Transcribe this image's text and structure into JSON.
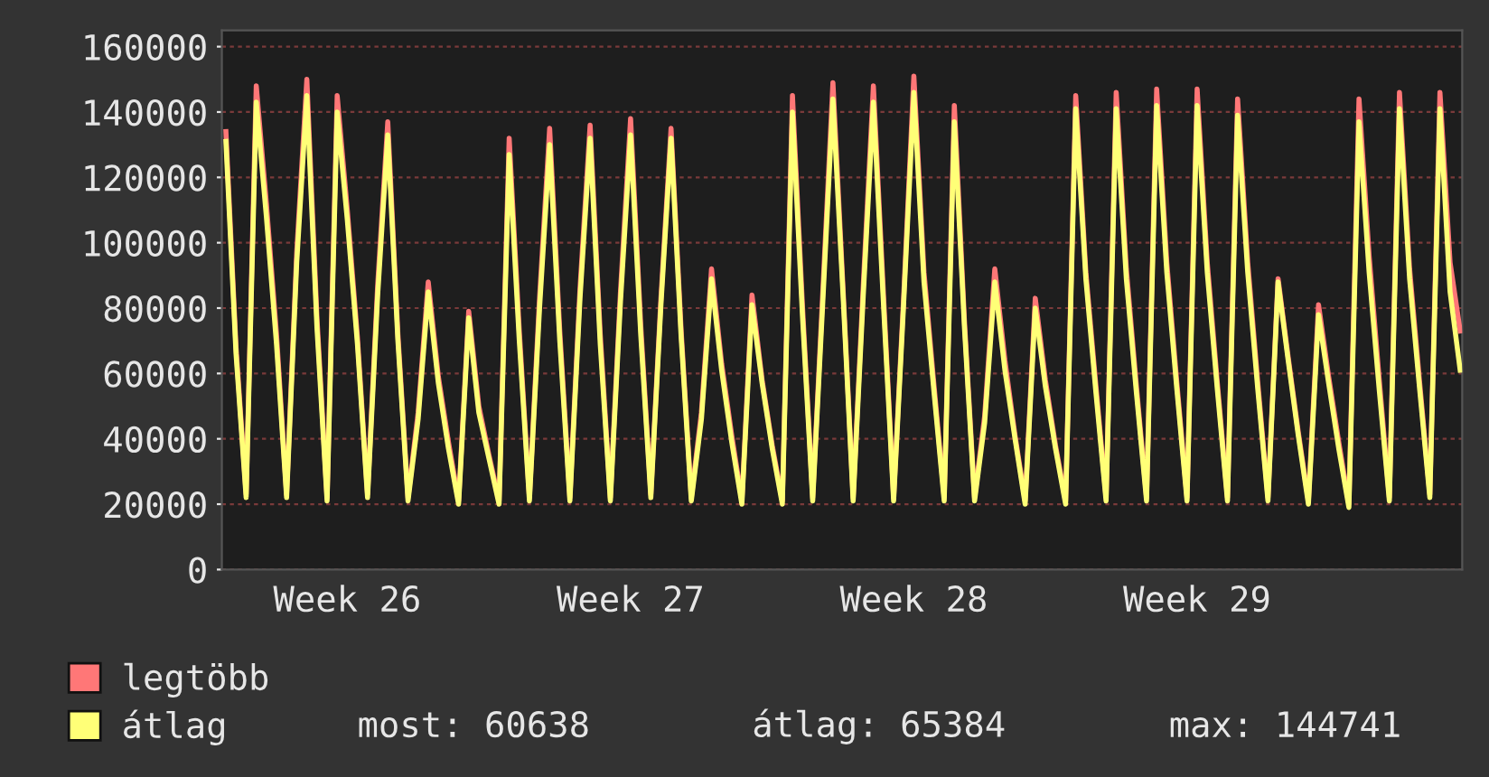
{
  "chart_data": {
    "type": "line",
    "categories": [
      null,
      null,
      null,
      null,
      null,
      null,
      null,
      null,
      null,
      null,
      null,
      null,
      "Week 26",
      null,
      null,
      null,
      null,
      null,
      null,
      null,
      null,
      null,
      null,
      null,
      null,
      null,
      null,
      null,
      null,
      null,
      null,
      null,
      null,
      null,
      null,
      null,
      null,
      null,
      null,
      null,
      "Week 27",
      null,
      null,
      null,
      null,
      null,
      null,
      null,
      null,
      null,
      null,
      null,
      null,
      null,
      null,
      null,
      null,
      null,
      null,
      null,
      null,
      null,
      null,
      null,
      null,
      null,
      null,
      null,
      "Week 28",
      null,
      null,
      null,
      null,
      null,
      null,
      null,
      null,
      null,
      null,
      null,
      null,
      null,
      null,
      null,
      null,
      null,
      null,
      null,
      null,
      null,
      null,
      null,
      null,
      null,
      null,
      null,
      "Week 29",
      null,
      null,
      null,
      null,
      null,
      null,
      null,
      null,
      null,
      null,
      null,
      null,
      null,
      null,
      null,
      null,
      null,
      null,
      null,
      null,
      null,
      null,
      null,
      null,
      null,
      null
    ],
    "series": [
      {
        "name": "legtöbb",
        "color": "#ff7777",
        "values": [
          134000,
          68000,
          23000,
          148000,
          112000,
          72000,
          23000,
          97000,
          150000,
          77000,
          22000,
          145000,
          110000,
          71000,
          23000,
          87000,
          137000,
          72000,
          22000,
          48000,
          88000,
          59000,
          39000,
          21000,
          79000,
          50000,
          35000,
          21000,
          132000,
          73000,
          22000,
          83000,
          135000,
          73000,
          22000,
          86000,
          136000,
          72000,
          22000,
          85000,
          138000,
          75000,
          23000,
          83000,
          135000,
          73000,
          22000,
          48000,
          92000,
          63000,
          41000,
          21000,
          84000,
          58000,
          38000,
          21000,
          145000,
          80000,
          22000,
          85000,
          149000,
          86000,
          22000,
          87000,
          148000,
          84000,
          22000,
          84000,
          151000,
          91000,
          56000,
          22000,
          142000,
          76000,
          22000,
          47000,
          92000,
          64000,
          41000,
          21000,
          83000,
          58000,
          38000,
          21000,
          145000,
          91000,
          56000,
          22000,
          146000,
          92000,
          56000,
          22000,
          147000,
          94000,
          57000,
          22000,
          147000,
          94000,
          57000,
          22000,
          144000,
          94000,
          57000,
          22000,
          89000,
          65000,
          42000,
          21000,
          81000,
          59000,
          39000,
          20000,
          144000,
          96000,
          58000,
          22000,
          146000,
          92000,
          57000,
          23000,
          146000,
          94000,
          73000
        ]
      },
      {
        "name": "átlag",
        "color": "#ffff77",
        "values": [
          131000,
          66000,
          22000,
          143000,
          108000,
          69000,
          22000,
          94000,
          145000,
          74000,
          21000,
          140000,
          107000,
          69000,
          22000,
          84000,
          133000,
          70000,
          21000,
          46000,
          85000,
          57000,
          37000,
          20000,
          77000,
          48000,
          34000,
          20000,
          127000,
          70000,
          21000,
          80000,
          130000,
          70000,
          21000,
          83000,
          132000,
          69000,
          21000,
          82000,
          133000,
          72000,
          22000,
          81000,
          132000,
          71000,
          21000,
          46000,
          89000,
          61000,
          39000,
          20000,
          81000,
          57000,
          37000,
          20000,
          140000,
          77000,
          21000,
          82000,
          144000,
          84000,
          21000,
          84000,
          143000,
          81000,
          21000,
          82000,
          146000,
          88000,
          54000,
          21000,
          137000,
          74000,
          21000,
          45000,
          88000,
          61000,
          40000,
          20000,
          80000,
          56000,
          37000,
          20000,
          141000,
          89000,
          54000,
          21000,
          141000,
          89000,
          54000,
          21000,
          142000,
          91000,
          55000,
          21000,
          142000,
          91000,
          55000,
          21000,
          139000,
          91000,
          55000,
          21000,
          88000,
          64000,
          41000,
          20000,
          78000,
          57000,
          37000,
          19000,
          137000,
          91000,
          55000,
          21000,
          141000,
          89000,
          55000,
          22000,
          141000,
          85000,
          61000
        ]
      }
    ],
    "ylim": [
      0,
      165000
    ],
    "yticks": [
      0,
      20000,
      40000,
      60000,
      80000,
      100000,
      120000,
      140000,
      160000
    ],
    "grid": "y",
    "legend": "bottom left",
    "marker": "none",
    "line_style": "solid",
    "annotations": [
      "most: 60638",
      "átlag: 65384",
      "max: 144741"
    ]
  }
}
